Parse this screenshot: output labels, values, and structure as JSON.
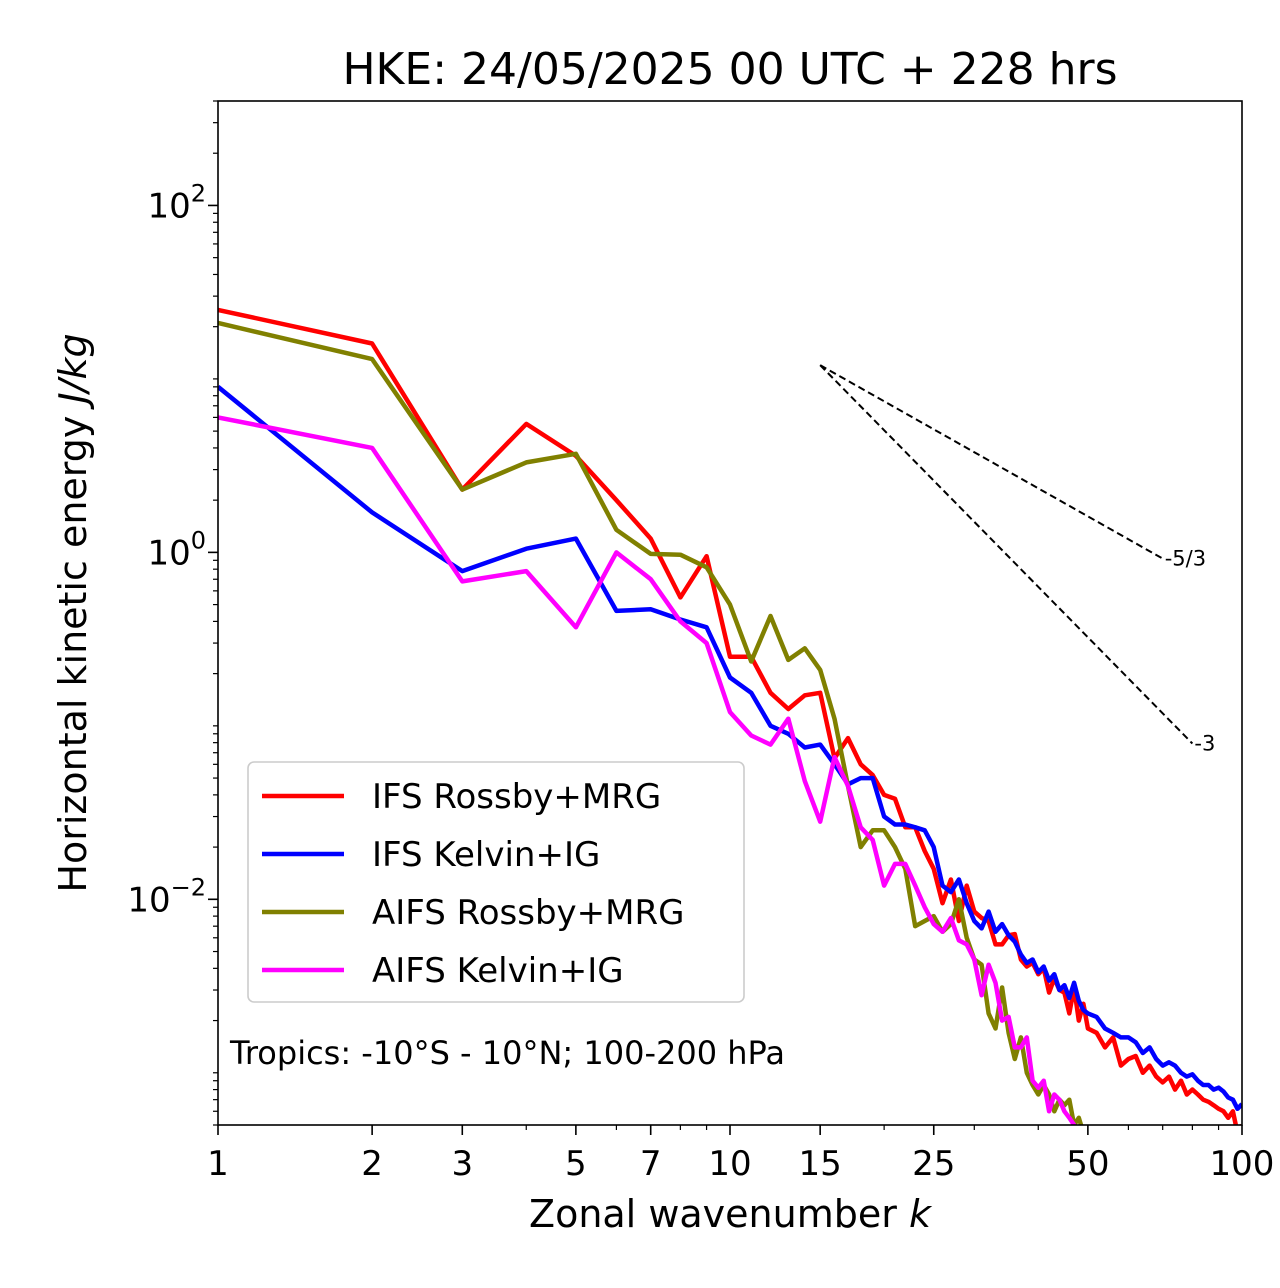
{
  "chart_data": {
    "type": "line",
    "title": "HKE: 24/05/2025 00 UTC + 228 hrs",
    "xlabel": "Zonal wavenumber",
    "xlabel_var": "k",
    "ylabel": "Horizontal kinetic energy",
    "ylabel_unit": "J/kg",
    "xscale": "log",
    "yscale": "log",
    "xlim": [
      1,
      100
    ],
    "ylim": [
      0.0005,
      400
    ],
    "x_ticks": [
      1,
      2,
      3,
      5,
      7,
      10,
      15,
      25,
      50,
      100
    ],
    "x_tick_labels": [
      "1",
      "2",
      "3",
      "5",
      "7",
      "10",
      "15",
      "25",
      "50",
      "100"
    ],
    "y_ticks": [
      0.01,
      1,
      100
    ],
    "y_tick_labels": [
      {
        "base": "10",
        "exp": "−2"
      },
      {
        "base": "10",
        "exp": "0"
      },
      {
        "base": "10",
        "exp": "2"
      }
    ],
    "grid": false,
    "legend_position": "lower-left",
    "annotation": "Tropics: -10°S - 10°N; 100-200 hPa",
    "reference_lines": [
      {
        "label": "-5/3",
        "slope": -1.6667,
        "x_start": 15,
        "y_start": 12.0,
        "x_end": 70
      },
      {
        "label": "-3",
        "slope": -3,
        "x_start": 15,
        "y_start": 12.0,
        "x_end": 80
      }
    ],
    "series": [
      {
        "name": "IFS Rossby+MRG",
        "color": "#ff0000",
        "x": [
          1,
          2,
          3,
          4,
          5,
          6,
          7,
          8,
          9,
          10,
          11,
          12,
          13,
          14,
          15,
          16,
          17,
          18,
          19,
          20,
          21,
          22,
          23,
          24,
          25,
          26,
          27,
          28,
          29,
          30,
          31,
          32,
          33,
          34,
          35,
          36,
          37,
          38,
          39,
          40,
          41,
          42,
          43,
          44,
          45,
          46,
          47,
          48,
          49,
          50,
          52,
          54,
          56,
          58,
          60,
          62,
          64,
          66,
          68,
          70,
          72,
          74,
          76,
          78,
          80,
          82,
          84,
          86,
          88,
          90,
          92,
          94,
          96,
          98,
          100
        ],
        "y": [
          25,
          16,
          2.3,
          5.5,
          3.6,
          2.0,
          1.2,
          0.55,
          0.95,
          0.25,
          0.25,
          0.155,
          0.125,
          0.15,
          0.155,
          0.065,
          0.085,
          0.06,
          0.052,
          0.04,
          0.038,
          0.026,
          0.026,
          0.019,
          0.015,
          0.0095,
          0.013,
          0.0075,
          0.012,
          0.0085,
          0.0078,
          0.0075,
          0.0055,
          0.0055,
          0.0062,
          0.0063,
          0.0045,
          0.0041,
          0.0043,
          0.0037,
          0.004,
          0.0029,
          0.0035,
          0.003,
          0.0029,
          0.0022,
          0.0031,
          0.002,
          0.0025,
          0.0018,
          0.0017,
          0.0014,
          0.0016,
          0.0011,
          0.0012,
          0.00125,
          0.001,
          0.0011,
          0.00095,
          0.00088,
          0.00095,
          0.0008,
          0.0009,
          0.00075,
          0.0008,
          0.00075,
          0.0007,
          0.00068,
          0.00065,
          0.00062,
          0.0006,
          0.00055,
          0.0006,
          0.00045,
          0.0005
        ]
      },
      {
        "name": "IFS Kelvin+IG",
        "color": "#0000ff",
        "x": [
          1,
          2,
          3,
          4,
          5,
          6,
          7,
          8,
          9,
          10,
          11,
          12,
          13,
          14,
          15,
          16,
          17,
          18,
          19,
          20,
          21,
          22,
          23,
          24,
          25,
          26,
          27,
          28,
          29,
          30,
          31,
          32,
          33,
          34,
          35,
          36,
          37,
          38,
          39,
          40,
          41,
          42,
          43,
          44,
          45,
          46,
          47,
          48,
          49,
          50,
          52,
          54,
          56,
          58,
          60,
          62,
          64,
          66,
          68,
          70,
          72,
          74,
          76,
          78,
          80,
          82,
          84,
          86,
          88,
          90,
          92,
          94,
          96,
          98,
          100
        ],
        "y": [
          9.0,
          1.7,
          0.78,
          1.05,
          1.2,
          0.46,
          0.47,
          0.41,
          0.37,
          0.19,
          0.155,
          0.1,
          0.09,
          0.075,
          0.078,
          0.06,
          0.046,
          0.05,
          0.05,
          0.03,
          0.027,
          0.027,
          0.026,
          0.025,
          0.02,
          0.012,
          0.011,
          0.013,
          0.0095,
          0.0075,
          0.0068,
          0.0085,
          0.0065,
          0.0072,
          0.0062,
          0.0057,
          0.0048,
          0.0043,
          0.0045,
          0.0038,
          0.0041,
          0.0034,
          0.0037,
          0.003,
          0.0032,
          0.0027,
          0.0033,
          0.0026,
          0.0023,
          0.0022,
          0.0021,
          0.0018,
          0.0017,
          0.0016,
          0.0016,
          0.0015,
          0.0013,
          0.0014,
          0.0012,
          0.0011,
          0.00115,
          0.0011,
          0.001,
          0.00095,
          0.00098,
          0.0009,
          0.00085,
          0.00085,
          0.0008,
          0.00082,
          0.00078,
          0.00072,
          0.0007,
          0.00062,
          0.00066
        ]
      },
      {
        "name": "AIFS Rossby+MRG",
        "color": "#808000",
        "x": [
          1,
          2,
          3,
          4,
          5,
          6,
          7,
          8,
          9,
          10,
          11,
          12,
          13,
          14,
          15,
          16,
          17,
          18,
          19,
          20,
          21,
          22,
          23,
          24,
          25,
          26,
          27,
          28,
          29,
          30,
          31,
          32,
          33,
          34,
          35,
          36,
          37,
          38,
          39,
          40,
          41,
          42,
          43,
          44,
          45,
          46,
          47,
          48,
          49,
          50
        ],
        "y": [
          21,
          13,
          2.3,
          3.3,
          3.7,
          1.35,
          0.98,
          0.97,
          0.82,
          0.5,
          0.235,
          0.43,
          0.24,
          0.28,
          0.21,
          0.11,
          0.045,
          0.02,
          0.025,
          0.025,
          0.02,
          0.015,
          0.007,
          0.0075,
          0.008,
          0.0065,
          0.0072,
          0.01,
          0.006,
          0.0045,
          0.0042,
          0.0022,
          0.0018,
          0.0031,
          0.0017,
          0.0012,
          0.0016,
          0.001,
          0.00085,
          0.00075,
          0.00085,
          0.00075,
          0.0006,
          0.0007,
          0.00065,
          0.0007,
          0.0005,
          0.00055,
          0.00045,
          0.00048
        ]
      },
      {
        "name": "AIFS Kelvin+IG",
        "color": "#ff00ff",
        "x": [
          1,
          2,
          3,
          4,
          5,
          6,
          7,
          8,
          9,
          10,
          11,
          12,
          13,
          14,
          15,
          16,
          17,
          18,
          19,
          20,
          21,
          22,
          23,
          24,
          25,
          26,
          27,
          28,
          29,
          30,
          31,
          32,
          33,
          34,
          35,
          36,
          37,
          38,
          39,
          40,
          41,
          42,
          43,
          44,
          45,
          46,
          47,
          48
        ],
        "y": [
          6.0,
          4.0,
          0.68,
          0.78,
          0.37,
          1.0,
          0.7,
          0.4,
          0.3,
          0.12,
          0.088,
          0.078,
          0.11,
          0.048,
          0.028,
          0.066,
          0.045,
          0.026,
          0.022,
          0.012,
          0.016,
          0.016,
          0.012,
          0.009,
          0.0072,
          0.0065,
          0.0078,
          0.0058,
          0.0055,
          0.0045,
          0.0028,
          0.0042,
          0.0033,
          0.002,
          0.0021,
          0.0014,
          0.0014,
          0.0016,
          0.0009,
          0.00082,
          0.0009,
          0.0006,
          0.00075,
          0.0007,
          0.0006,
          0.00055,
          0.0005,
          0.00042
        ]
      }
    ]
  }
}
